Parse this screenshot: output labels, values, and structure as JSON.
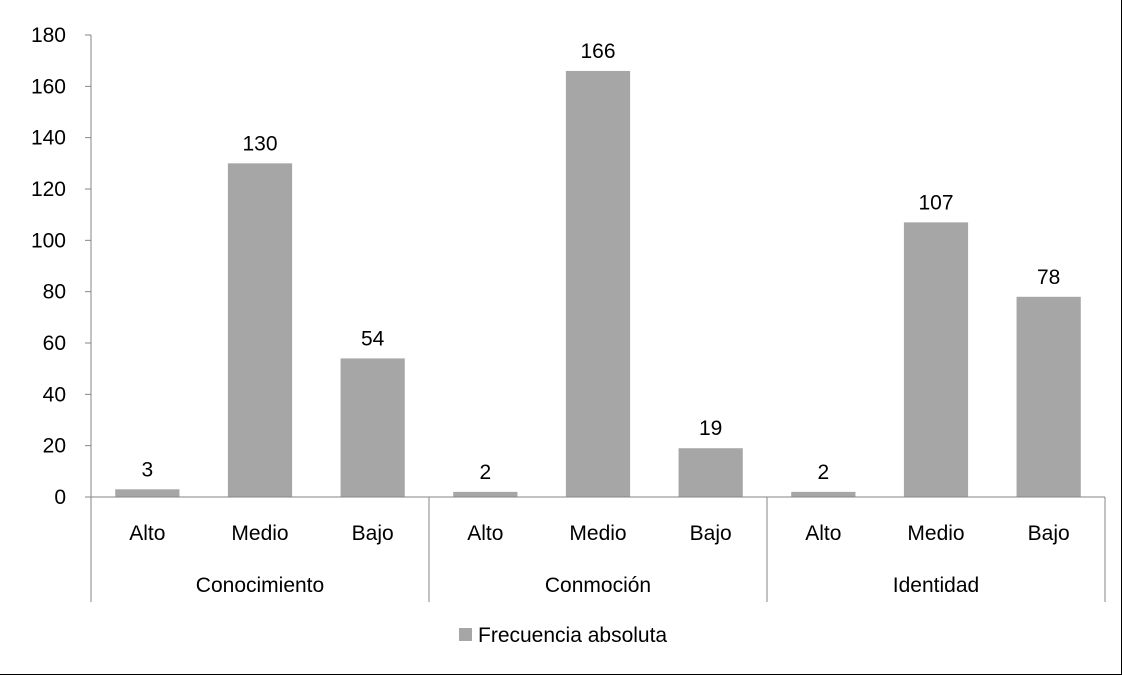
{
  "chart_data": {
    "type": "bar",
    "groups": [
      {
        "name": "Conocimiento",
        "categories": [
          "Alto",
          "Medio",
          "Bajo"
        ],
        "values": [
          3,
          130,
          54
        ]
      },
      {
        "name": "Conmoción",
        "categories": [
          "Alto",
          "Medio",
          "Bajo"
        ],
        "values": [
          2,
          166,
          19
        ]
      },
      {
        "name": "Identidad",
        "categories": [
          "Alto",
          "Medio",
          "Bajo"
        ],
        "values": [
          2,
          107,
          78
        ]
      }
    ],
    "series": [
      {
        "name": "Frecuencia absoluta",
        "values": [
          3,
          130,
          54,
          2,
          166,
          19,
          2,
          107,
          78
        ]
      }
    ],
    "title": "",
    "xlabel": "",
    "ylabel": "",
    "ylim": [
      0,
      180
    ],
    "yticks": [
      0,
      20,
      40,
      60,
      80,
      100,
      120,
      140,
      160,
      180
    ],
    "grid": false,
    "data_labels": true,
    "legend": {
      "position": "bottom",
      "entries": [
        "Frecuencia absoluta"
      ]
    },
    "bar_color": "#a6a6a6",
    "axis_color": "#868686"
  }
}
